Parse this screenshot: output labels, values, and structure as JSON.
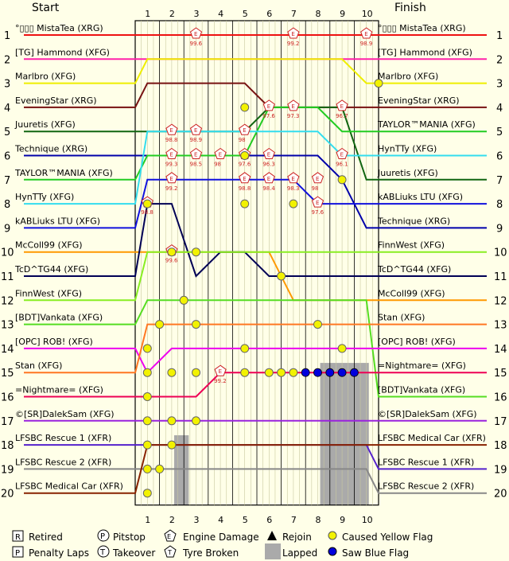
{
  "header": {
    "start": "Start",
    "finish": "Finish"
  },
  "laps": [
    "1",
    "2",
    "3",
    "4",
    "5",
    "6",
    "7",
    "8",
    "9",
    "10"
  ],
  "positions": [
    "1",
    "2",
    "3",
    "4",
    "5",
    "6",
    "7",
    "8",
    "9",
    "10",
    "11",
    "12",
    "13",
    "14",
    "15",
    "16",
    "17",
    "18",
    "19",
    "20"
  ],
  "start_labels": [
    "°▯▯▯ MistaTea (XRG)",
    "[TG] Hammond (XFG)",
    "Marlbro (XFG)",
    "EveningStar (XRG)",
    "Juuretis (XFG)",
    "Technique (XRG)",
    "TAYLOR™MANIA (XFG)",
    "HynTTy (XFG)",
    "kABLiuks LTU (XFG)",
    "McColl99 (XFG)",
    "TcD^TG44 (XFG)",
    "FinnWest (XFG)",
    "[BDT]Vankata (XFG)",
    "[OPC] ROB! (XFG)",
    "Stan (XFG)",
    "=Nightmare= (XFG)",
    "©[SR]DalekSam (XFG)",
    "LFSBC Rescue 1 (XFR)",
    "LFSBC Rescue 2 (XFR)",
    "LFSBC Medical Car (XFR)"
  ],
  "finish_labels": [
    "°▯▯▯ MistaTea (XRG)",
    "[TG] Hammond (XFG)",
    "Marlbro (XFG)",
    "EveningStar (XRG)",
    "TAYLOR™MANIA (XFG)",
    "HynTTy (XFG)",
    "Juuretis (XFG)",
    "kABLiuks LTU (XFG)",
    "Technique (XRG)",
    "FinnWest (XFG)",
    "TcD^TG44 (XFG)",
    "McColl99 (XFG)",
    "Stan (XFG)",
    "[OPC] ROB! (XFG)",
    "=Nightmare= (XFG)",
    "[BDT]Vankata (XFG)",
    "©[SR]DalekSam (XFG)",
    "LFSBC Medical Car (XFR)",
    "LFSBC Rescue 1 (XFR)",
    "LFSBC Rescue 2 (XFR)"
  ],
  "legend": {
    "retired": "Retired",
    "pitstop": "Pitstop",
    "engine": "Engine Damage",
    "rejoin": "Rejoin",
    "yellow": "Caused Yellow Flag",
    "penalty": "Penalty Laps",
    "takeover": "Takeover",
    "tyre": "Tyre Broken",
    "lapped": "Lapped",
    "blue": "Saw Blue Flag",
    "sym_r": "R",
    "sym_p": "P",
    "sym_pit": "P",
    "sym_t": "T",
    "sym_e": "E"
  },
  "chart_data": {
    "type": "line",
    "title": "",
    "x": [
      0,
      1,
      2,
      3,
      4,
      5,
      6,
      7,
      8,
      9,
      10,
      11
    ],
    "x_meaning": "lap",
    "y_axis": "race position (1 at top)",
    "series": [
      {
        "driver": "°▯▯▯ MistaTea (XRG)",
        "color": "#ee1111",
        "positions": [
          1,
          1,
          1,
          1,
          1,
          1,
          1,
          1,
          1,
          1,
          1,
          1
        ]
      },
      {
        "driver": "[TG] Hammond (XFG)",
        "color": "#ff22aa",
        "positions": [
          2,
          2,
          2,
          2,
          2,
          2,
          2,
          2,
          2,
          2,
          2,
          2
        ]
      },
      {
        "driver": "Marlbro (XFG)",
        "color": "#eeee00",
        "positions": [
          3,
          2,
          2,
          2,
          2,
          2,
          2,
          2,
          2,
          2,
          3,
          3
        ]
      },
      {
        "driver": "EveningStar (XRG)",
        "color": "#771111",
        "positions": [
          4,
          3,
          3,
          3,
          3,
          3,
          4,
          4,
          4,
          4,
          4,
          4
        ]
      },
      {
        "driver": "Juuretis (XFG)",
        "color": "#116611",
        "positions": [
          5,
          5,
          5,
          5,
          5,
          5,
          4,
          4,
          4,
          4,
          7,
          7
        ]
      },
      {
        "driver": "Technique (XRG)",
        "color": "#0000aa",
        "positions": [
          6,
          6,
          6,
          6,
          6,
          6,
          6,
          6,
          6,
          7,
          9,
          9
        ]
      },
      {
        "driver": "TAYLOR™MANIA (XFG)",
        "color": "#22cc22",
        "positions": [
          7,
          6,
          6,
          6,
          6,
          6,
          4,
          4,
          4,
          5,
          5,
          5
        ]
      },
      {
        "driver": "HynTTy (XFG)",
        "color": "#33ddee",
        "positions": [
          8,
          5,
          5,
          5,
          5,
          5,
          5,
          5,
          5,
          6,
          6,
          6
        ]
      },
      {
        "driver": "kABLiuks LTU (XFG)",
        "color": "#1111dd",
        "positions": [
          9,
          7,
          7,
          7,
          7,
          7,
          7,
          7,
          8,
          8,
          8,
          8
        ]
      },
      {
        "driver": "McColl99 (XFG)",
        "color": "#ff9900",
        "positions": [
          10,
          10,
          10,
          10,
          10,
          10,
          10,
          12,
          12,
          12,
          12,
          12
        ]
      },
      {
        "driver": "TcD^TG44 (XFG)",
        "color": "#000055",
        "positions": [
          11,
          8,
          8,
          11,
          10,
          10,
          11,
          11,
          11,
          11,
          11,
          11
        ]
      },
      {
        "driver": "FinnWest (XFG)",
        "color": "#88ee22",
        "positions": [
          12,
          10,
          10,
          10,
          10,
          10,
          10,
          10,
          10,
          10,
          10,
          10
        ]
      },
      {
        "driver": "[BDT]Vankata (XFG)",
        "color": "#55dd22",
        "positions": [
          13,
          12,
          12,
          12,
          12,
          12,
          12,
          12,
          12,
          12,
          12,
          16
        ]
      },
      {
        "driver": "[OPC] ROB! (XFG)",
        "color": "#ee00ee",
        "positions": [
          14,
          15,
          14,
          14,
          14,
          14,
          14,
          14,
          14,
          14,
          14,
          14
        ]
      },
      {
        "driver": "Stan (XFG)",
        "color": "#ff7722",
        "positions": [
          15,
          13,
          13,
          13,
          13,
          13,
          13,
          13,
          13,
          13,
          13,
          13
        ]
      },
      {
        "driver": "=Nightmare= (XFG)",
        "color": "#ee0055",
        "positions": [
          16,
          16,
          16,
          16,
          15,
          15,
          15,
          15,
          15,
          15,
          15,
          15
        ]
      },
      {
        "driver": "©[SR]DalekSam (XFG)",
        "color": "#9922dd",
        "positions": [
          17,
          17,
          17,
          17,
          17,
          17,
          17,
          17,
          17,
          17,
          17,
          17
        ]
      },
      {
        "driver": "LFSBC Rescue 1 (XFR)",
        "color": "#5522cc",
        "positions": [
          18,
          18,
          18,
          18,
          18,
          18,
          18,
          18,
          18,
          18,
          18,
          19
        ]
      },
      {
        "driver": "LFSBC Rescue 2 (XFR)",
        "color": "#888888",
        "positions": [
          19,
          19,
          19,
          19,
          19,
          19,
          19,
          19,
          19,
          19,
          19,
          20
        ]
      },
      {
        "driver": "LFSBC Medical Car (XFR)",
        "color": "#882200",
        "positions": [
          20,
          18,
          18,
          18,
          18,
          18,
          18,
          18,
          18,
          18,
          18,
          18
        ]
      }
    ],
    "engine_damage": [
      {
        "lap": 3,
        "pos": 1,
        "value": "99.6"
      },
      {
        "lap": 7,
        "pos": 1,
        "value": "99.2"
      },
      {
        "lap": 10,
        "pos": 1,
        "value": "98.9"
      },
      {
        "lap": 6,
        "pos": 4,
        "value": "97.6"
      },
      {
        "lap": 7,
        "pos": 4,
        "value": "97.3"
      },
      {
        "lap": 9,
        "pos": 4,
        "value": "96.7"
      },
      {
        "lap": 2,
        "pos": 5,
        "value": "98.8"
      },
      {
        "lap": 3,
        "pos": 5,
        "value": "98.9"
      },
      {
        "lap": 5,
        "pos": 5,
        "value": "98"
      },
      {
        "lap": 2,
        "pos": 6,
        "value": "99.3"
      },
      {
        "lap": 3,
        "pos": 6,
        "value": "98.5"
      },
      {
        "lap": 4,
        "pos": 6,
        "value": "98"
      },
      {
        "lap": 5,
        "pos": 6,
        "value": "97.6"
      },
      {
        "lap": 6,
        "pos": 6,
        "value": "96.3"
      },
      {
        "lap": 9,
        "pos": 6,
        "value": "96.1"
      },
      {
        "lap": 2,
        "pos": 7,
        "value": "99.2"
      },
      {
        "lap": 5,
        "pos": 7,
        "value": "98.8"
      },
      {
        "lap": 6,
        "pos": 7,
        "value": "98.4"
      },
      {
        "lap": 7,
        "pos": 7,
        "value": "98.3"
      },
      {
        "lap": 8,
        "pos": 7,
        "value": "98"
      },
      {
        "lap": 8,
        "pos": 8,
        "value": "97.6"
      },
      {
        "lap": 1,
        "pos": 8,
        "value": "98.8"
      },
      {
        "lap": 2,
        "pos": 10,
        "value": "99.6"
      },
      {
        "lap": 4,
        "pos": 15,
        "value": "99.2"
      }
    ],
    "yellow_flags": [
      {
        "lap": 5,
        "pos": 4
      },
      {
        "lap": 5,
        "pos": 6
      },
      {
        "lap": 9,
        "pos": 7
      },
      {
        "lap": 5,
        "pos": 8
      },
      {
        "lap": 7,
        "pos": 8
      },
      {
        "lap": 3,
        "pos": 10
      },
      {
        "lap": 1,
        "pos": 8
      },
      {
        "lap": 6.5,
        "pos": 11
      },
      {
        "lap": 2,
        "pos": 10
      },
      {
        "lap": 2.5,
        "pos": 12
      },
      {
        "lap": 1.5,
        "pos": 13
      },
      {
        "lap": 3,
        "pos": 13
      },
      {
        "lap": 8,
        "pos": 13
      },
      {
        "lap": 5,
        "pos": 14
      },
      {
        "lap": 9,
        "pos": 14
      },
      {
        "lap": 1,
        "pos": 14
      },
      {
        "lap": 1,
        "pos": 15
      },
      {
        "lap": 2,
        "pos": 15
      },
      {
        "lap": 3,
        "pos": 15
      },
      {
        "lap": 5,
        "pos": 15
      },
      {
        "lap": 6,
        "pos": 15
      },
      {
        "lap": 6.5,
        "pos": 15
      },
      {
        "lap": 7,
        "pos": 15
      },
      {
        "lap": 1,
        "pos": 16
      },
      {
        "lap": 1,
        "pos": 17
      },
      {
        "lap": 2,
        "pos": 17
      },
      {
        "lap": 3,
        "pos": 17
      },
      {
        "lap": 1,
        "pos": 18
      },
      {
        "lap": 2,
        "pos": 18
      },
      {
        "lap": 1,
        "pos": 19
      },
      {
        "lap": 1.5,
        "pos": 19
      },
      {
        "lap": 1,
        "pos": 20
      },
      {
        "lap": 10.5,
        "pos": 3
      }
    ],
    "blue_flags": [
      {
        "lap": 7.5,
        "pos": 15
      },
      {
        "lap": 8,
        "pos": 15
      },
      {
        "lap": 8.5,
        "pos": 15
      },
      {
        "lap": 9,
        "pos": 15
      },
      {
        "lap": 9.5,
        "pos": 15
      }
    ],
    "lapped_regions": [
      {
        "lap_from": 1.6,
        "lap_to": 2.2,
        "pos_from": 17.6,
        "pos_to": 20
      },
      {
        "lap_from": 7.6,
        "lap_to": 9.6,
        "pos_from": 14.6,
        "pos_to": 20
      }
    ]
  }
}
